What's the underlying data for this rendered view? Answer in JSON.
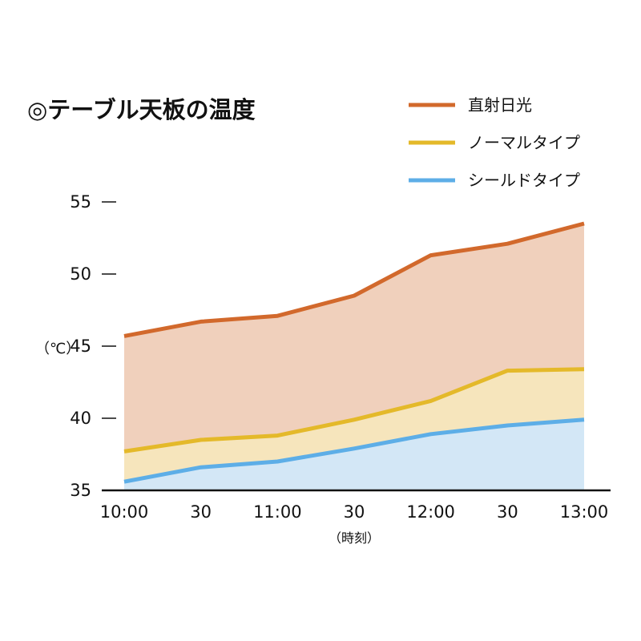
{
  "chart_data": {
    "type": "area",
    "title": "◎テーブル天板の温度",
    "xlabel": "（時刻）",
    "ylabel": "（℃）",
    "categories": [
      "10:00",
      "30",
      "11:00",
      "30",
      "12:00",
      "30",
      "13:00"
    ],
    "ylim": [
      35,
      55
    ],
    "yticks": [
      35,
      40,
      45,
      50,
      55
    ],
    "grid": false,
    "legend_position": "top-right",
    "series": [
      {
        "name": "直射日光",
        "color": "#d2692c",
        "fill": "#f0d0bc",
        "values": [
          45.7,
          46.7,
          47.1,
          48.5,
          51.3,
          52.1,
          53.5
        ]
      },
      {
        "name": "ノーマルタイプ",
        "color": "#e4b92a",
        "fill": "#f6e5bc",
        "values": [
          37.7,
          38.5,
          38.8,
          39.9,
          41.2,
          43.3,
          43.4
        ]
      },
      {
        "name": "シールドタイプ",
        "color": "#5daee7",
        "fill": "#d3e7f6",
        "values": [
          35.6,
          36.6,
          37.0,
          37.9,
          38.9,
          39.5,
          39.9
        ]
      }
    ]
  }
}
